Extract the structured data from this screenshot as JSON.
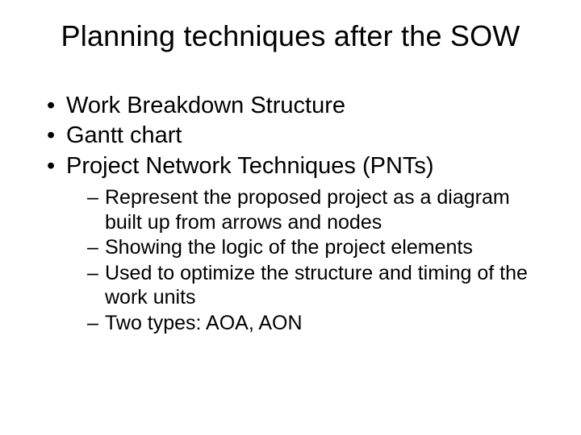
{
  "title": "Planning techniques after the SOW",
  "bullets": {
    "b0": "Work Breakdown Structure",
    "b1": "Gantt chart",
    "b2": "Project Network Techniques (PNTs)",
    "b2_sub": {
      "s0": "Represent the proposed project as a diagram built up from arrows and nodes",
      "s1": "Showing the logic of the project elements",
      "s2": "Used to optimize the structure and timing of the work units",
      "s3": "Two types: AOA, AON"
    }
  },
  "colors": {
    "background": "#ffffff",
    "text": "#000000"
  },
  "typography": {
    "font_family": "Arial",
    "title_fontsize": 36,
    "level1_fontsize": 29,
    "level2_fontsize": 25
  }
}
